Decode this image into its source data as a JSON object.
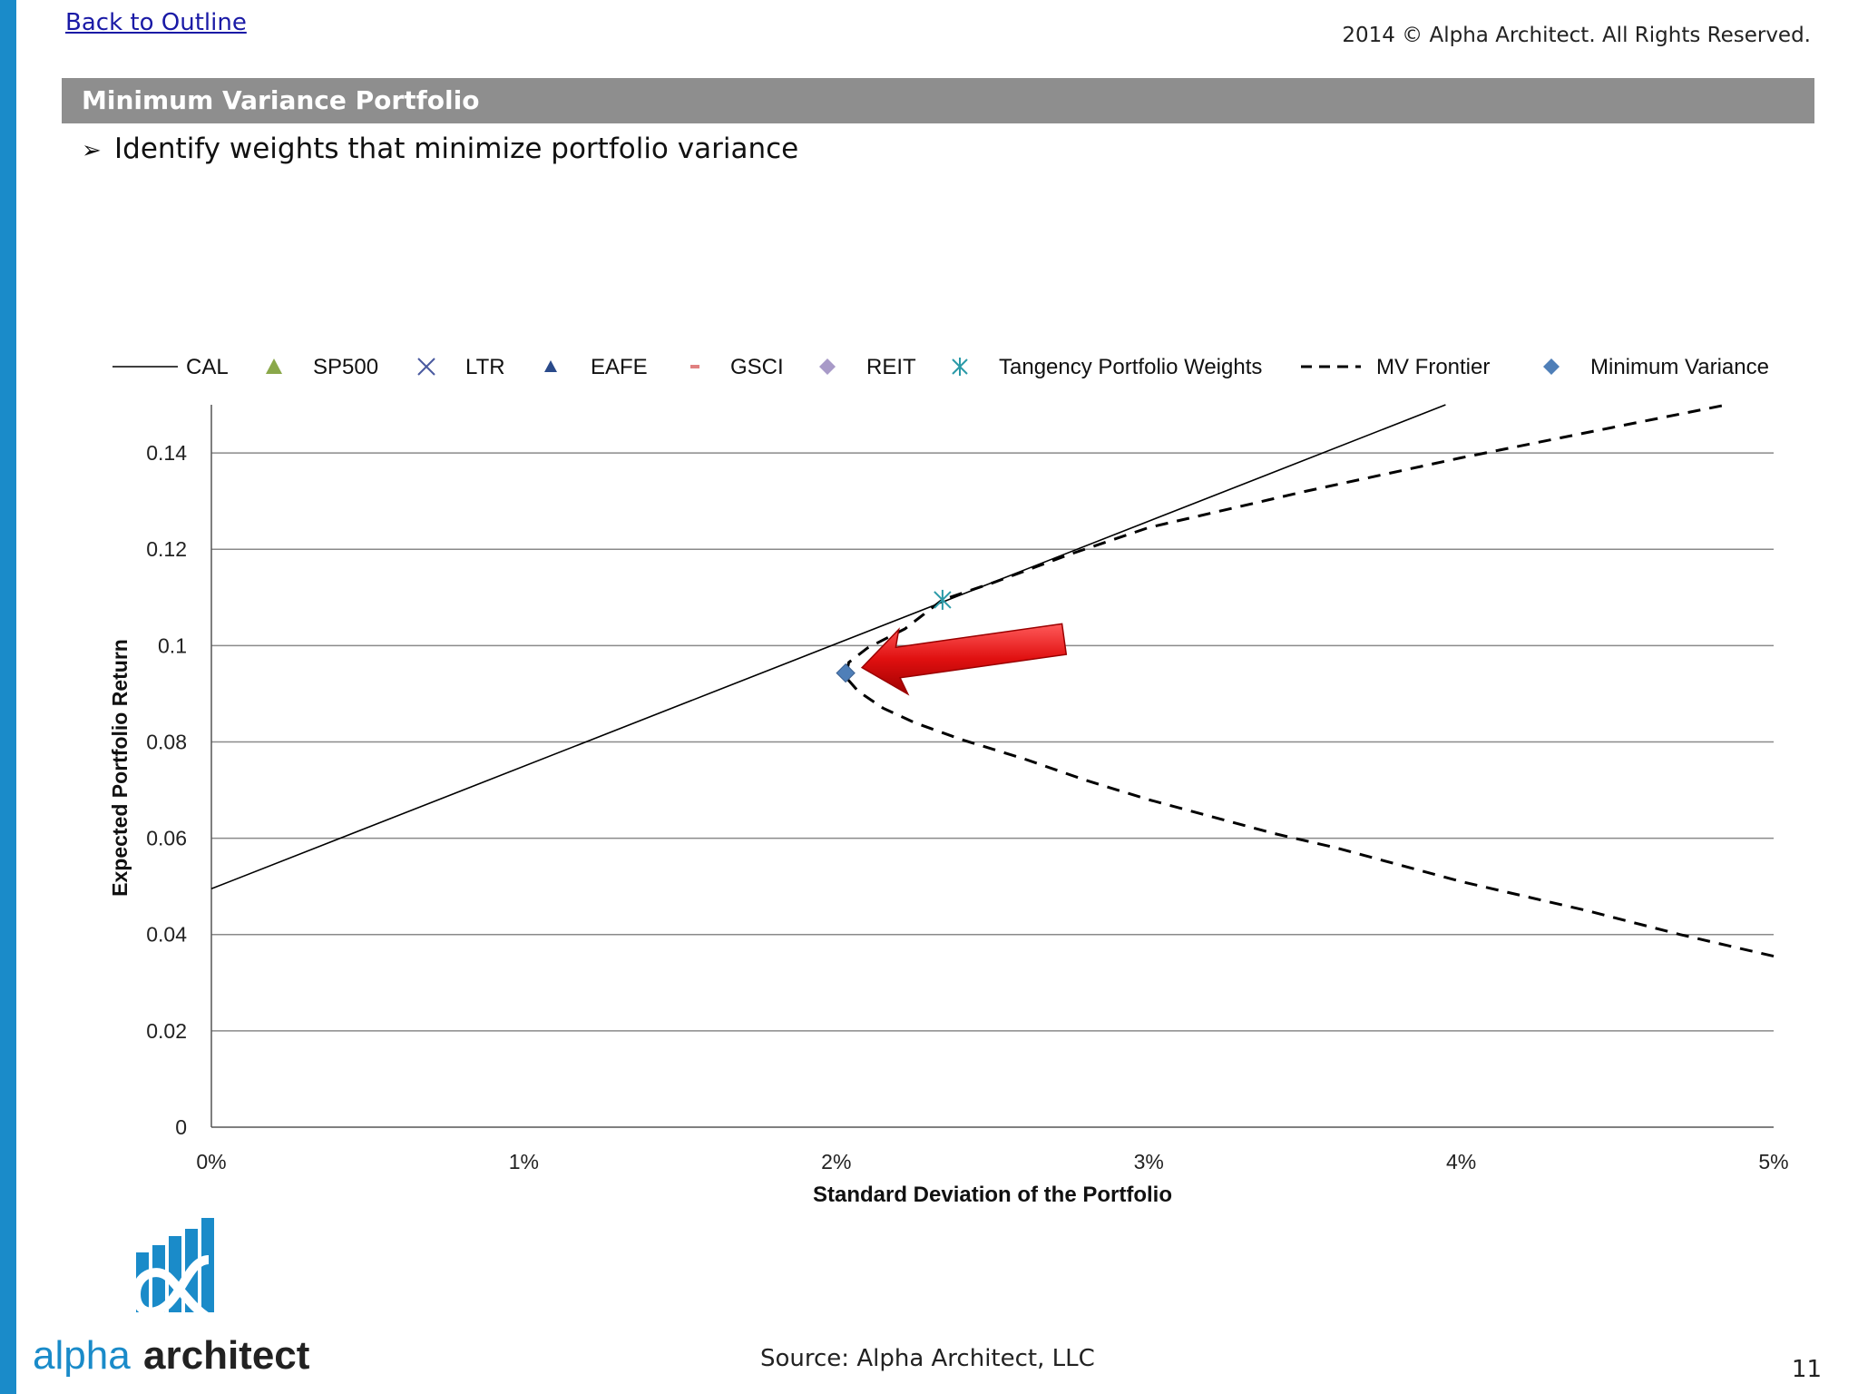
{
  "header": {
    "back_link": "Back to Outline",
    "copyright": "2014 © Alpha Architect. All Rights Reserved."
  },
  "slide": {
    "title": "Minimum Variance Portfolio",
    "bullet": "Identify weights that minimize portfolio variance"
  },
  "footer": {
    "source": "Source: Alpha Architect, LLC",
    "page_number": "11",
    "logo_text_1": "alpha",
    "logo_text_2": "architect"
  },
  "colors": {
    "accent_bar": "#1a8bc9",
    "title_bar": "#8e8e8e",
    "arrow": "#e01010",
    "min_var_marker": "#4f7fb8",
    "tangency_marker": "#2a9aa8"
  },
  "chart_data": {
    "type": "line",
    "xlabel": "Standard Deviation of the Portfolio",
    "ylabel": "Expected Portfolio Return",
    "xlim": [
      0,
      0.05
    ],
    "ylim": [
      0,
      0.15
    ],
    "x_ticks": [
      {
        "value": 0,
        "label": "0%"
      },
      {
        "value": 0.01,
        "label": "1%"
      },
      {
        "value": 0.02,
        "label": "2%"
      },
      {
        "value": 0.03,
        "label": "3%"
      },
      {
        "value": 0.04,
        "label": "4%"
      },
      {
        "value": 0.05,
        "label": "5%"
      }
    ],
    "y_ticks": [
      {
        "value": 0,
        "label": "0"
      },
      {
        "value": 0.02,
        "label": "0.02"
      },
      {
        "value": 0.04,
        "label": "0.04"
      },
      {
        "value": 0.06,
        "label": "0.06"
      },
      {
        "value": 0.08,
        "label": "0.08"
      },
      {
        "value": 0.1,
        "label": "0.1"
      },
      {
        "value": 0.12,
        "label": "0.12"
      },
      {
        "value": 0.14,
        "label": "0.14"
      }
    ],
    "grid": "horizontal",
    "legend_position": "top",
    "legend": [
      {
        "label": "CAL",
        "symbol": "line"
      },
      {
        "label": "SP500",
        "symbol": "triangle",
        "color": "#8aa84a"
      },
      {
        "label": "LTR",
        "symbol": "x",
        "color": "#4a5aa0"
      },
      {
        "label": "EAFE",
        "symbol": "small-triangle",
        "color": "#2a4a8a"
      },
      {
        "label": "GSCI",
        "symbol": "dash",
        "color": "#e08080"
      },
      {
        "label": "REIT",
        "symbol": "diamond",
        "color": "#a89ac8"
      },
      {
        "label": "Tangency Portfolio Weights",
        "symbol": "asterisk",
        "color": "#2a9aa8"
      },
      {
        "label": "MV Frontier",
        "symbol": "dashed-line"
      },
      {
        "label": "Minimum Variance",
        "symbol": "diamond",
        "color": "#4f7fb8"
      }
    ],
    "series": [
      {
        "name": "CAL",
        "style": "solid",
        "x": [
          0,
          0.0395
        ],
        "y": [
          0.0495,
          0.15
        ]
      },
      {
        "name": "MV Frontier",
        "style": "dashed",
        "x": [
          0.05,
          0.047,
          0.044,
          0.04,
          0.036,
          0.034,
          0.03,
          0.028,
          0.026,
          0.024,
          0.0225,
          0.0215,
          0.0207,
          0.0203,
          0.0204,
          0.021,
          0.0222,
          0.0234,
          0.025,
          0.0275,
          0.03,
          0.035,
          0.04,
          0.045,
          0.0485
        ],
        "y": [
          0.0355,
          0.04,
          0.045,
          0.051,
          0.058,
          0.061,
          0.068,
          0.072,
          0.0765,
          0.0805,
          0.084,
          0.087,
          0.0905,
          0.0935,
          0.0965,
          0.0995,
          0.1035,
          0.1095,
          0.113,
          0.119,
          0.1245,
          0.132,
          0.139,
          0.1455,
          0.15
        ]
      }
    ],
    "points": [
      {
        "name": "Tangency Portfolio Weights",
        "x": 0.0234,
        "y": 0.1095,
        "symbol": "asterisk"
      },
      {
        "name": "Minimum Variance",
        "x": 0.0203,
        "y": 0.0943,
        "symbol": "diamond"
      }
    ],
    "annotation": {
      "type": "arrow",
      "pointing_to": "Minimum Variance"
    }
  }
}
